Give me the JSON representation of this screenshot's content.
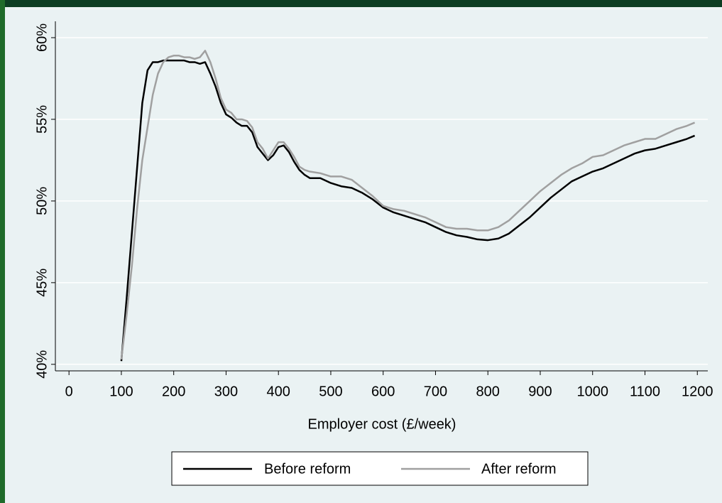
{
  "chart_data": {
    "type": "line",
    "xlabel": "Employer cost (£/week)",
    "x": [
      100,
      110,
      120,
      130,
      140,
      150,
      160,
      170,
      180,
      190,
      200,
      210,
      220,
      230,
      240,
      250,
      260,
      270,
      280,
      290,
      300,
      310,
      320,
      330,
      340,
      350,
      360,
      370,
      380,
      390,
      400,
      410,
      420,
      430,
      440,
      450,
      460,
      480,
      500,
      520,
      540,
      560,
      580,
      600,
      620,
      640,
      660,
      680,
      700,
      720,
      740,
      760,
      780,
      800,
      820,
      840,
      860,
      880,
      900,
      920,
      940,
      960,
      980,
      1000,
      1020,
      1040,
      1060,
      1080,
      1100,
      1120,
      1140,
      1160,
      1180,
      1195
    ],
    "series": [
      {
        "name": "Before reform",
        "color": "#000000",
        "values": [
          40.2,
          44,
          48,
          52,
          56,
          58,
          58.5,
          58.5,
          58.6,
          58.6,
          58.6,
          58.6,
          58.6,
          58.5,
          58.5,
          58.4,
          58.5,
          57.8,
          57,
          56,
          55.3,
          55.1,
          54.8,
          54.6,
          54.6,
          54.2,
          53.3,
          52.9,
          52.5,
          52.8,
          53.3,
          53.4,
          53,
          52.4,
          51.9,
          51.6,
          51.4,
          51.4,
          51.1,
          50.9,
          50.8,
          50.5,
          50.1,
          49.6,
          49.3,
          49.1,
          48.9,
          48.7,
          48.4,
          48.1,
          47.9,
          47.8,
          47.65,
          47.6,
          47.7,
          48.0,
          48.5,
          49.0,
          49.6,
          50.2,
          50.7,
          51.2,
          51.5,
          51.8,
          52.0,
          52.3,
          52.6,
          52.9,
          53.1,
          53.2,
          53.4,
          53.6,
          53.8,
          54.0
        ]
      },
      {
        "name": "After reform",
        "color": "#a0a0a0",
        "values": [
          40.3,
          43,
          46,
          49.5,
          52.5,
          54.5,
          56.5,
          57.8,
          58.5,
          58.8,
          58.9,
          58.9,
          58.8,
          58.8,
          58.7,
          58.8,
          59.2,
          58.5,
          57.5,
          56.3,
          55.6,
          55.4,
          55,
          55,
          54.9,
          54.5,
          53.6,
          53.2,
          52.6,
          53.1,
          53.6,
          53.6,
          53.2,
          52.7,
          52.1,
          51.9,
          51.8,
          51.7,
          51.5,
          51.5,
          51.3,
          50.8,
          50.3,
          49.7,
          49.5,
          49.4,
          49.2,
          49.0,
          48.7,
          48.4,
          48.3,
          48.3,
          48.2,
          48.2,
          48.4,
          48.8,
          49.4,
          50.0,
          50.6,
          51.1,
          51.6,
          52.0,
          52.3,
          52.7,
          52.8,
          53.1,
          53.4,
          53.6,
          53.8,
          53.8,
          54.1,
          54.4,
          54.6,
          54.8
        ]
      }
    ],
    "xlim": [
      -26,
      1220
    ],
    "ylim": [
      39.6,
      61
    ],
    "xticks": [
      0,
      100,
      200,
      300,
      400,
      500,
      600,
      700,
      800,
      900,
      1000,
      1100,
      1200
    ],
    "yticks": [
      {
        "value": 40,
        "label": "40%"
      },
      {
        "value": 45,
        "label": "45%"
      },
      {
        "value": 50,
        "label": "50%"
      },
      {
        "value": 55,
        "label": "55%"
      },
      {
        "value": 60,
        "label": "60%"
      }
    ],
    "grid": true,
    "legend": "bottom"
  }
}
